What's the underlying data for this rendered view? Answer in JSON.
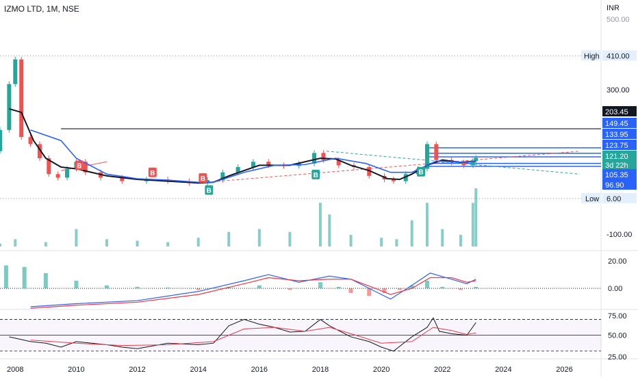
{
  "header": {
    "symbol": "IZMO LTD, 1M, NSE",
    "currency": "INR"
  },
  "price_labels": {
    "ticks": [
      "500.00",
      "300.00",
      "-100.00"
    ],
    "high_label": "High",
    "high_value": "410.00",
    "low_label": "Low",
    "low_value": "6.00",
    "tags": [
      {
        "text": "203.45",
        "bg": "#131722"
      },
      {
        "text": "149.45",
        "bg": "#2962ff"
      },
      {
        "text": "133.95",
        "bg": "#2962ff"
      },
      {
        "text": "123.75",
        "bg": "#2962ff"
      },
      {
        "text": "121.20",
        "bg": "#26a69a"
      },
      {
        "text": "3d 22h",
        "bg": "#26a69a"
      },
      {
        "text": "105.35",
        "bg": "#2962ff"
      },
      {
        "text": "96.90",
        "bg": "#2962ff"
      }
    ]
  },
  "macd_labels": [
    "20.00",
    "0.00"
  ],
  "rsi_labels": [
    "75.00",
    "50.00",
    "25.00"
  ],
  "x_axis": [
    "2008",
    "2010",
    "2012",
    "2014",
    "2016",
    "2018",
    "2020",
    "2022",
    "2024",
    "2026"
  ],
  "signals": [
    {
      "label": "B",
      "color": "#ef5350",
      "x": 2010.1,
      "y": 98
    },
    {
      "label": "B",
      "color": "#ef5350",
      "x": 2012.5,
      "y": 78
    },
    {
      "label": "B",
      "color": "#ef5350",
      "x": 2014.15,
      "y": 62
    },
    {
      "label": "B",
      "color": "#26a69a",
      "x": 2014.35,
      "y": 28
    },
    {
      "label": "B",
      "color": "#26a69a",
      "x": 2017.85,
      "y": 72
    },
    {
      "label": "B",
      "color": "#26a69a",
      "x": 2021.3,
      "y": 80
    }
  ],
  "colors": {
    "up": "#26a69a",
    "down": "#ef5350",
    "ma": "#2962ff",
    "ema": "#131722",
    "macd": "#2962ff",
    "signal": "#f23645"
  },
  "chart_data": {
    "type": "candlestick",
    "title": "IZMO LTD, 1M, NSE",
    "x_range": [
      2007.5,
      2027.2
    ],
    "price_axis": {
      "min": -130,
      "max": 510
    },
    "price": [
      {
        "x": 2007.5,
        "open": 140,
        "close": 200
      },
      {
        "x": 2007.8,
        "open": 200,
        "close": 330
      },
      {
        "x": 2008.0,
        "open": 330,
        "close": 400
      },
      {
        "x": 2008.2,
        "open": 400,
        "close": 180
      },
      {
        "x": 2008.5,
        "open": 180,
        "close": 160
      },
      {
        "x": 2008.8,
        "open": 160,
        "close": 120
      },
      {
        "x": 2009.1,
        "open": 120,
        "close": 75
      },
      {
        "x": 2009.4,
        "open": 75,
        "close": 65
      },
      {
        "x": 2009.7,
        "open": 65,
        "close": 90
      },
      {
        "x": 2010.0,
        "open": 90,
        "close": 110
      },
      {
        "x": 2010.3,
        "open": 110,
        "close": 80
      },
      {
        "x": 2010.8,
        "open": 80,
        "close": 65
      },
      {
        "x": 2011.5,
        "open": 65,
        "close": 55
      },
      {
        "x": 2012.3,
        "open": 55,
        "close": 60
      },
      {
        "x": 2013.0,
        "open": 60,
        "close": 55
      },
      {
        "x": 2013.7,
        "open": 55,
        "close": 50
      },
      {
        "x": 2014.3,
        "open": 50,
        "close": 58
      },
      {
        "x": 2014.8,
        "open": 58,
        "close": 80
      },
      {
        "x": 2015.3,
        "open": 80,
        "close": 95
      },
      {
        "x": 2015.8,
        "open": 95,
        "close": 110
      },
      {
        "x": 2016.3,
        "open": 110,
        "close": 100
      },
      {
        "x": 2016.8,
        "open": 100,
        "close": 98
      },
      {
        "x": 2017.3,
        "open": 98,
        "close": 105
      },
      {
        "x": 2017.8,
        "open": 105,
        "close": 135
      },
      {
        "x": 2018.1,
        "open": 135,
        "close": 115
      },
      {
        "x": 2018.6,
        "open": 115,
        "close": 100
      },
      {
        "x": 2019.1,
        "open": 100,
        "close": 95
      },
      {
        "x": 2019.6,
        "open": 95,
        "close": 70
      },
      {
        "x": 2020.1,
        "open": 70,
        "close": 60
      },
      {
        "x": 2020.4,
        "open": 60,
        "close": 55
      },
      {
        "x": 2020.8,
        "open": 55,
        "close": 75
      },
      {
        "x": 2021.2,
        "open": 75,
        "close": 90
      },
      {
        "x": 2021.5,
        "open": 90,
        "close": 160
      },
      {
        "x": 2021.8,
        "open": 160,
        "close": 115
      },
      {
        "x": 2022.3,
        "open": 115,
        "close": 108
      },
      {
        "x": 2022.7,
        "open": 108,
        "close": 100
      },
      {
        "x": 2023.0,
        "open": 100,
        "close": 112
      },
      {
        "x": 2023.1,
        "open": 112,
        "close": 121.2
      }
    ],
    "ema": [
      [
        2007.8,
        260
      ],
      [
        2008.2,
        250
      ],
      [
        2008.6,
        170
      ],
      [
        2009.0,
        120
      ],
      [
        2009.5,
        95
      ],
      [
        2010.0,
        90
      ],
      [
        2011.0,
        70
      ],
      [
        2012.0,
        60
      ],
      [
        2013.0,
        55
      ],
      [
        2014.0,
        50
      ],
      [
        2014.5,
        52
      ],
      [
        2015.0,
        70
      ],
      [
        2016.0,
        100
      ],
      [
        2017.0,
        100
      ],
      [
        2018.0,
        120
      ],
      [
        2018.5,
        118
      ],
      [
        2019.0,
        100
      ],
      [
        2019.6,
        85
      ],
      [
        2020.2,
        62
      ],
      [
        2020.6,
        60
      ],
      [
        2021.0,
        75
      ],
      [
        2021.5,
        100
      ],
      [
        2022.0,
        115
      ],
      [
        2022.6,
        108
      ],
      [
        2023.1,
        112
      ]
    ],
    "ma": [
      [
        2008.5,
        200
      ],
      [
        2009.5,
        170
      ],
      [
        2010.0,
        120
      ],
      [
        2011.0,
        75
      ],
      [
        2012.0,
        62
      ],
      [
        2013.0,
        58
      ],
      [
        2014.0,
        52
      ],
      [
        2014.5,
        52
      ],
      [
        2015.5,
        80
      ],
      [
        2016.5,
        100
      ],
      [
        2017.5,
        102
      ],
      [
        2018.5,
        120
      ],
      [
        2019.5,
        105
      ],
      [
        2020.3,
        80
      ],
      [
        2021.0,
        80
      ],
      [
        2021.8,
        112
      ],
      [
        2022.8,
        108
      ],
      [
        2023.1,
        113
      ]
    ],
    "levels": [
      203.45,
      149.45,
      133.95,
      123.75,
      105.35,
      96.9
    ],
    "high": 410.0,
    "low": 6.0,
    "volume": [
      [
        2007.5,
        2
      ],
      [
        2008.0,
        5
      ],
      [
        2009.0,
        3
      ],
      [
        2010.0,
        12
      ],
      [
        2011.0,
        5
      ],
      [
        2012.0,
        4
      ],
      [
        2013.0,
        3
      ],
      [
        2014.0,
        6
      ],
      [
        2015.0,
        10
      ],
      [
        2016.0,
        12
      ],
      [
        2017.0,
        10
      ],
      [
        2018.0,
        30
      ],
      [
        2018.3,
        22
      ],
      [
        2019.0,
        8
      ],
      [
        2020.0,
        6
      ],
      [
        2020.5,
        5
      ],
      [
        2021.0,
        18
      ],
      [
        2021.5,
        30
      ],
      [
        2022.0,
        12
      ],
      [
        2022.6,
        8
      ],
      [
        2023.0,
        30
      ],
      [
        2023.1,
        40
      ]
    ],
    "macd": {
      "axis": {
        "min": -12,
        "max": 22
      },
      "hist": [
        [
          2007.7,
          15
        ],
        [
          2008.3,
          14
        ],
        [
          2009.0,
          10
        ],
        [
          2010.0,
          5
        ],
        [
          2011.0,
          2
        ],
        [
          2012.0,
          1
        ],
        [
          2013.0,
          0.5
        ],
        [
          2014.0,
          -1
        ],
        [
          2015.0,
          1
        ],
        [
          2016.0,
          2
        ],
        [
          2017.0,
          -1
        ],
        [
          2018.0,
          4
        ],
        [
          2018.6,
          1
        ],
        [
          2019.0,
          -3
        ],
        [
          2019.6,
          -5
        ],
        [
          2020.1,
          -3
        ],
        [
          2020.6,
          -1
        ],
        [
          2021.0,
          2
        ],
        [
          2021.5,
          5
        ],
        [
          2022.0,
          1
        ],
        [
          2022.6,
          -1
        ],
        [
          2023.1,
          1
        ]
      ],
      "macd": [
        [
          2008.5,
          -12
        ],
        [
          2010.0,
          -10
        ],
        [
          2012.0,
          -8
        ],
        [
          2014.0,
          -2
        ],
        [
          2015.5,
          5
        ],
        [
          2016.3,
          9
        ],
        [
          2017.3,
          4
        ],
        [
          2018.3,
          8
        ],
        [
          2019.0,
          6
        ],
        [
          2019.8,
          -2
        ],
        [
          2020.3,
          -7
        ],
        [
          2021.0,
          2
        ],
        [
          2021.6,
          10
        ],
        [
          2022.3,
          6
        ],
        [
          2022.8,
          3
        ],
        [
          2023.1,
          6
        ]
      ],
      "signal": [
        [
          2008.5,
          -13
        ],
        [
          2010.0,
          -11
        ],
        [
          2012.0,
          -9
        ],
        [
          2014.0,
          -4
        ],
        [
          2015.5,
          3
        ],
        [
          2016.3,
          7
        ],
        [
          2017.3,
          5
        ],
        [
          2018.3,
          6
        ],
        [
          2019.0,
          6
        ],
        [
          2019.8,
          0
        ],
        [
          2020.3,
          -4
        ],
        [
          2021.0,
          0
        ],
        [
          2021.6,
          7
        ],
        [
          2022.3,
          7
        ],
        [
          2022.8,
          4
        ],
        [
          2023.1,
          5
        ]
      ]
    },
    "rsi": {
      "axis": {
        "min": 22,
        "max": 80
      },
      "levels": [
        70,
        50,
        30
      ],
      "rsi": [
        [
          2007.8,
          48
        ],
        [
          2008.5,
          42
        ],
        [
          2009.0,
          40
        ],
        [
          2009.5,
          35
        ],
        [
          2010.0,
          42
        ],
        [
          2011.0,
          38
        ],
        [
          2011.5,
          35
        ],
        [
          2012.0,
          33
        ],
        [
          2013.0,
          40
        ],
        [
          2014.0,
          38
        ],
        [
          2014.5,
          40
        ],
        [
          2015.0,
          62
        ],
        [
          2015.5,
          70
        ],
        [
          2016.0,
          64
        ],
        [
          2016.5,
          60
        ],
        [
          2017.0,
          54
        ],
        [
          2017.5,
          55
        ],
        [
          2018.0,
          70
        ],
        [
          2018.3,
          62
        ],
        [
          2019.0,
          48
        ],
        [
          2019.6,
          42
        ],
        [
          2020.0,
          35
        ],
        [
          2020.4,
          30
        ],
        [
          2021.0,
          48
        ],
        [
          2021.5,
          60
        ],
        [
          2021.7,
          72
        ],
        [
          2021.9,
          55
        ],
        [
          2022.3,
          52
        ],
        [
          2022.8,
          50
        ],
        [
          2023.1,
          66
        ]
      ],
      "ma": [
        [
          2008.5,
          44
        ],
        [
          2010.0,
          40
        ],
        [
          2011.5,
          37
        ],
        [
          2013.0,
          38
        ],
        [
          2014.5,
          42
        ],
        [
          2015.5,
          58
        ],
        [
          2016.5,
          60
        ],
        [
          2017.5,
          55
        ],
        [
          2018.3,
          60
        ],
        [
          2019.0,
          52
        ],
        [
          2020.0,
          40
        ],
        [
          2021.0,
          42
        ],
        [
          2021.7,
          60
        ],
        [
          2022.3,
          56
        ],
        [
          2022.8,
          51
        ],
        [
          2023.1,
          53
        ]
      ]
    },
    "xlabel": "",
    "ylabel": ""
  }
}
